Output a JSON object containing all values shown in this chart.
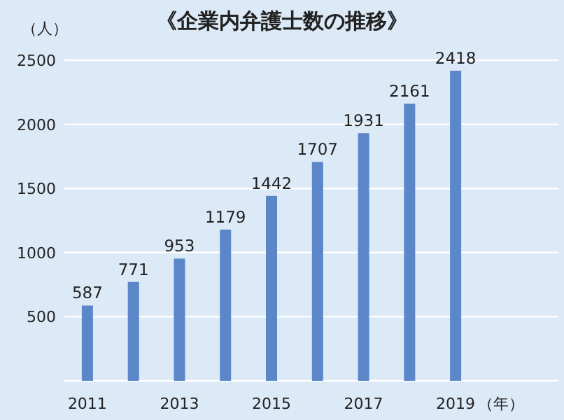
{
  "chart_data": {
    "type": "bar",
    "title": "《企業内弁護士数の推移》",
    "ylabel": "（人）",
    "xlabel": "（年）",
    "categories": [
      "2011",
      null,
      "2013",
      null,
      "2015",
      null,
      "2017",
      null,
      "2019"
    ],
    "values": [
      587,
      771,
      953,
      1179,
      1442,
      1707,
      1931,
      2161,
      2418
    ],
    "color": "#5b87c8",
    "ylim": [
      0,
      2500
    ],
    "yticks": [
      500,
      1000,
      1500,
      2000,
      2500
    ],
    "grid": "y",
    "data_labels": true
  }
}
